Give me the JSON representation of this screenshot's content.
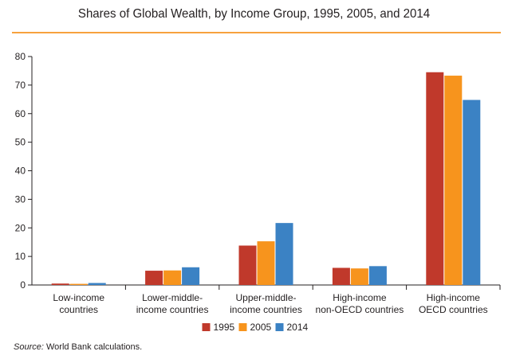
{
  "chart_data": {
    "type": "bar",
    "title": "Shares of Global Wealth, by Income Group, 1995, 2005, and 2014",
    "categories": [
      [
        "Low-income",
        "countries"
      ],
      [
        "Lower-middle-",
        "income countries"
      ],
      [
        "Upper-middle-",
        "income countries"
      ],
      [
        "High-income",
        "non-OECD countries"
      ],
      [
        "High-income",
        "OECD countries"
      ]
    ],
    "series": [
      {
        "name": "1995",
        "color": "#c0392b",
        "values": [
          0.5,
          5.0,
          13.8,
          6.0,
          74.5
        ]
      },
      {
        "name": "2005",
        "color": "#f7941d",
        "values": [
          0.4,
          5.1,
          15.3,
          5.8,
          73.3
        ]
      },
      {
        "name": "2014",
        "color": "#3b82c4",
        "values": [
          0.7,
          6.2,
          21.7,
          6.6,
          64.8
        ]
      }
    ],
    "ylim": [
      0,
      80
    ],
    "yticks": [
      0,
      10,
      20,
      30,
      40,
      50,
      60,
      70,
      80
    ],
    "grid": false,
    "legend": "bottom-center"
  },
  "source": {
    "label": "Source:",
    "text": " World Bank calculations."
  }
}
